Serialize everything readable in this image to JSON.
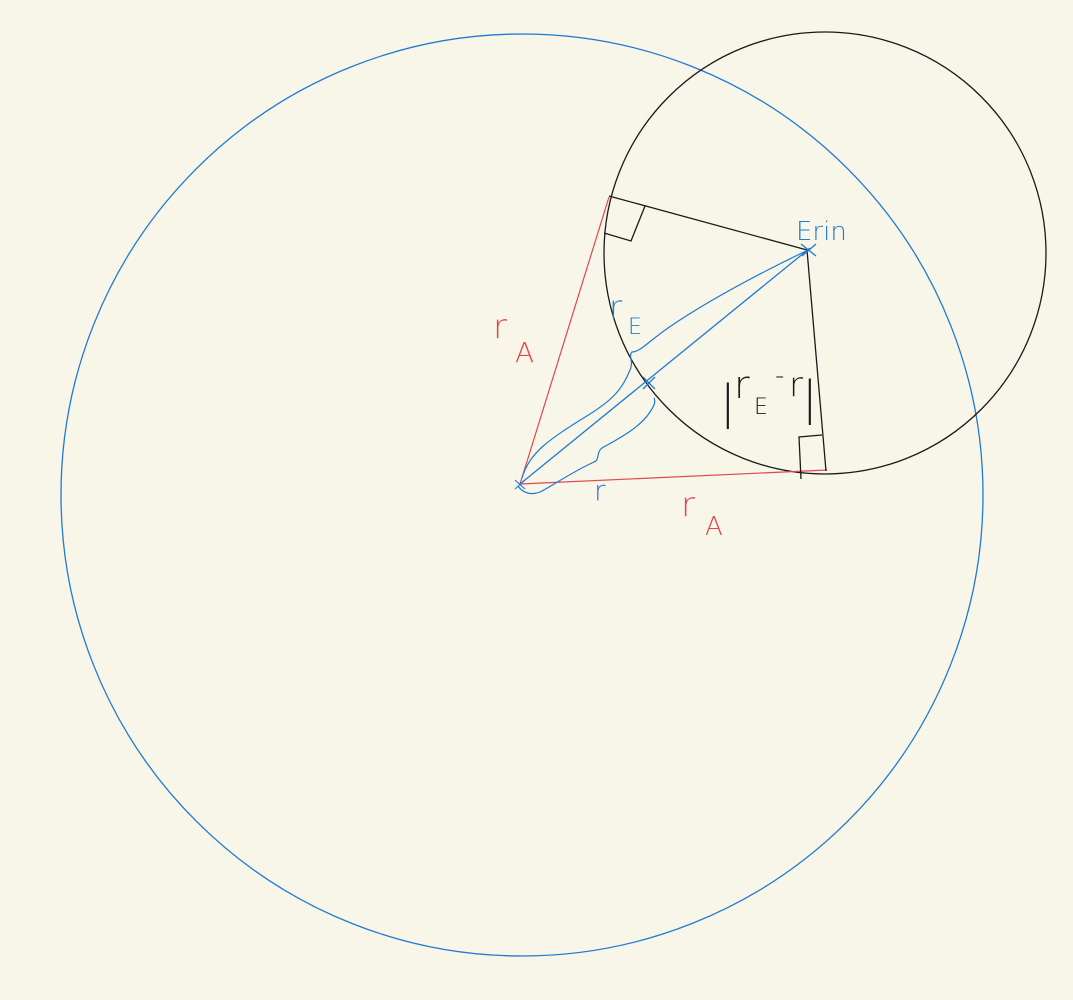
{
  "colors": {
    "background": "#f8f5e9",
    "blue": "#1f7bd1",
    "red": "#e0474c",
    "black": "#1a1a1a"
  },
  "labels": {
    "erin": "Erin",
    "r_a_left": "r",
    "r_a_left_sub": "A",
    "r_a_bottom": "r",
    "r_a_bottom_sub": "A",
    "r_e": "r",
    "r_e_sub": "E",
    "r_small": "r",
    "diff_bar_left": "|",
    "diff_r": "r",
    "diff_sub": "E",
    "diff_minus": "-",
    "diff_r2": "r",
    "diff_bar_right": "|"
  }
}
